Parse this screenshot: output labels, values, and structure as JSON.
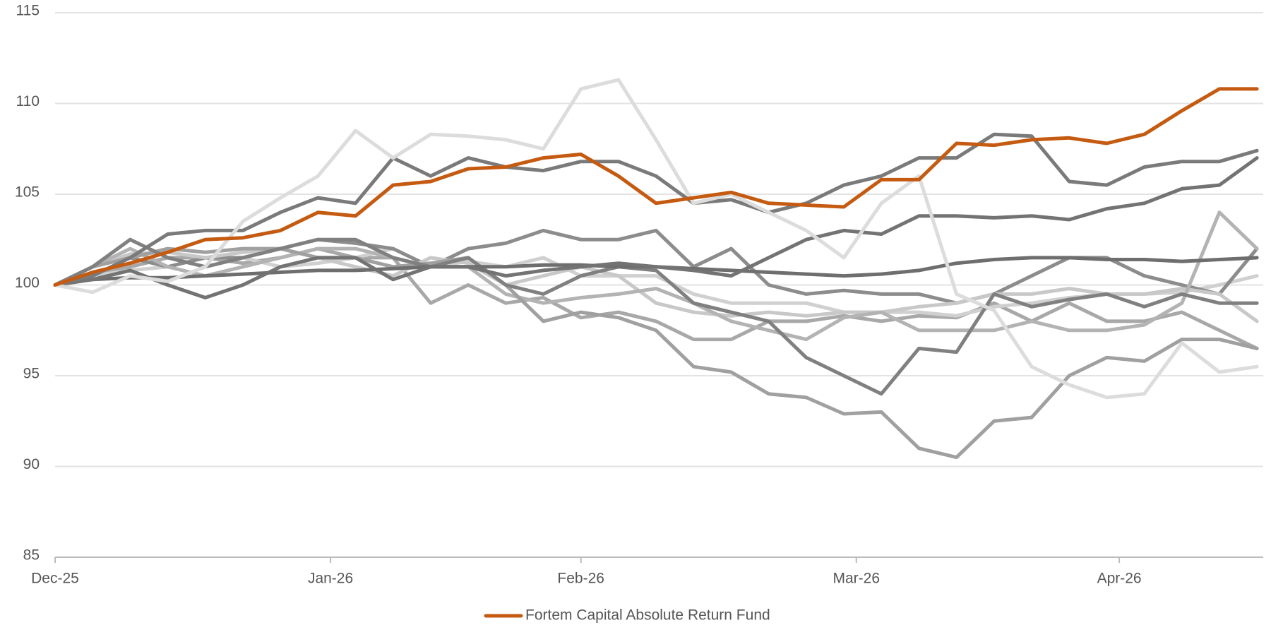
{
  "chart_data": {
    "type": "line",
    "xlim": [
      0,
      96.5
    ],
    "xticks": [
      {
        "value": 0,
        "label": "Dec-25"
      },
      {
        "value": 22,
        "label": "Jan-26"
      },
      {
        "value": 42,
        "label": "Feb-26"
      },
      {
        "value": 64,
        "label": "Mar-26"
      },
      {
        "value": 85,
        "label": "Apr-26"
      }
    ],
    "ylim": [
      85,
      115
    ],
    "yticks": [
      85,
      90,
      95,
      100,
      105,
      110,
      115
    ],
    "grid": true,
    "legend": "bottom",
    "x": [
      0,
      3,
      6,
      9,
      12,
      15,
      18,
      21,
      24,
      27,
      30,
      33,
      36,
      39,
      42,
      45,
      48,
      51,
      54,
      57,
      60,
      63,
      66,
      69,
      72,
      75,
      78,
      81,
      84,
      87,
      90,
      93,
      96
    ],
    "series": [
      {
        "name": "Fortem Capital Absolute Return Fund",
        "color": "#c55a11",
        "values": [
          100,
          100.7,
          101.2,
          101.8,
          102.5,
          102.6,
          103,
          104,
          103.8,
          105.5,
          105.7,
          106.4,
          106.5,
          107,
          107.2,
          106,
          104.5,
          104.8,
          105.1,
          104.5,
          104.4,
          104.3,
          105.8,
          105.8,
          107.8,
          107.7,
          108,
          108.1,
          107.8,
          108.3,
          109.6,
          110.8,
          110.8
        ]
      },
      {
        "color": "#dcdcdc",
        "values": [
          100,
          99.6,
          100.5,
          100.2,
          101,
          103.5,
          104.8,
          106,
          108.5,
          107,
          108.3,
          108.2,
          108,
          107.5,
          110.8,
          111.3,
          108,
          104.5,
          105,
          104,
          103,
          101.5,
          104.5,
          106,
          99.5,
          98.6,
          95.5,
          94.5,
          93.8,
          94,
          96.8,
          95.2,
          95.5
        ]
      },
      {
        "color": "#7a7a7a",
        "values": [
          100,
          100.5,
          101.5,
          102.8,
          103,
          103,
          104,
          104.8,
          104.5,
          107,
          106,
          107,
          106.5,
          106.3,
          106.8,
          106.8,
          106,
          104.5,
          104.7,
          104,
          104.5,
          105.5,
          106,
          107,
          107,
          108.3,
          108.2,
          105.7,
          105.5,
          106.5,
          106.8,
          106.8,
          107.4
        ]
      },
      {
        "color": "#737373",
        "values": [
          100,
          100.3,
          100.8,
          100,
          99.3,
          100,
          101,
          101.5,
          101.5,
          100.3,
          101,
          101,
          100.5,
          100.8,
          101,
          101.2,
          101,
          100.8,
          100.5,
          101.5,
          102.5,
          103,
          102.8,
          103.8,
          103.8,
          103.7,
          103.8,
          103.6,
          104.2,
          104.5,
          105.3,
          105.5,
          107
        ]
      },
      {
        "color": "#6e6e6e",
        "values": [
          100,
          100.3,
          100.4,
          100.4,
          100.5,
          100.6,
          100.7,
          100.8,
          100.8,
          100.9,
          101,
          101,
          101,
          101.1,
          101.1,
          101,
          101,
          100.9,
          100.8,
          100.7,
          100.6,
          100.5,
          100.6,
          100.8,
          101.2,
          101.4,
          101.5,
          101.5,
          101.4,
          101.4,
          101.3,
          101.4,
          101.5
        ]
      },
      {
        "color": "#808080",
        "values": [
          100,
          101,
          102.5,
          101.5,
          101,
          101.5,
          102,
          102.5,
          102.5,
          101.5,
          101,
          101.5,
          100,
          99.5,
          100.5,
          101,
          100.8,
          99,
          98.5,
          98,
          96,
          95,
          94,
          96.5,
          96.3,
          99.5,
          98.8,
          99.2,
          99.5,
          98.8,
          99.5,
          99,
          99
        ]
      },
      {
        "color": "#a0a0a0",
        "values": [
          100,
          101,
          101.5,
          102,
          101.8,
          102,
          102,
          101.5,
          101.5,
          101,
          101.2,
          101.5,
          100,
          98,
          98.5,
          98.2,
          97.5,
          95.5,
          95.2,
          94,
          93.8,
          92.9,
          93,
          91,
          90.5,
          92.5,
          92.7,
          95,
          96,
          95.8,
          97,
          97,
          96.5
        ]
      },
      {
        "color": "#b3b3b3",
        "values": [
          100,
          101,
          102,
          101,
          100.5,
          101,
          101.5,
          102,
          102,
          101.5,
          101,
          101,
          99.5,
          99,
          99.3,
          99.5,
          99.8,
          99,
          98,
          97.5,
          97,
          98.2,
          98.5,
          97.5,
          97.5,
          97.5,
          98,
          97.5,
          97.5,
          97.8,
          99,
          104,
          102
        ]
      },
      {
        "color": "#c8c8c8",
        "values": [
          100,
          101,
          101.7,
          101.8,
          101.5,
          101.8,
          102,
          101.5,
          101,
          100.5,
          101.5,
          101.2,
          100,
          100.5,
          101,
          100.5,
          99,
          98.5,
          98.3,
          98.5,
          98.3,
          98.5,
          98.5,
          98.8,
          99,
          99.5,
          99.5,
          99.8,
          99.5,
          99.5,
          99.8,
          99.5,
          98
        ]
      },
      {
        "color": "#8c8c8c",
        "values": [
          100,
          100.5,
          101.5,
          101,
          101.5,
          101.5,
          102,
          102.5,
          102.3,
          102,
          101,
          102,
          102.3,
          103,
          102.5,
          102.5,
          103,
          101,
          102,
          100,
          99.5,
          99.7,
          99.5,
          99.5,
          99,
          99.5,
          100.5,
          101.5,
          101.5,
          100.5,
          100,
          99.5,
          102
        ]
      },
      {
        "color": "#d0d0d0",
        "values": [
          100,
          100.5,
          100.8,
          101,
          101.5,
          101.5,
          101,
          101.2,
          101.5,
          102,
          101,
          101.3,
          101,
          101.5,
          100.5,
          100.5,
          100.5,
          99.5,
          99,
          99,
          99,
          98.5,
          98.5,
          98.5,
          98.3,
          98.8,
          99,
          99.3,
          99.5,
          99.5,
          99.6,
          100,
          100.5
        ]
      },
      {
        "color": "#a8a8a8",
        "values": [
          100,
          100.5,
          101,
          101.5,
          101.5,
          101.2,
          101.5,
          102,
          101.5,
          101.5,
          99,
          100,
          99,
          99.3,
          98.2,
          98.5,
          98,
          97,
          97,
          98,
          98,
          98.3,
          98,
          98.3,
          98.2,
          99,
          98,
          99,
          98,
          98,
          98.5,
          97.5,
          96.5
        ]
      }
    ]
  }
}
